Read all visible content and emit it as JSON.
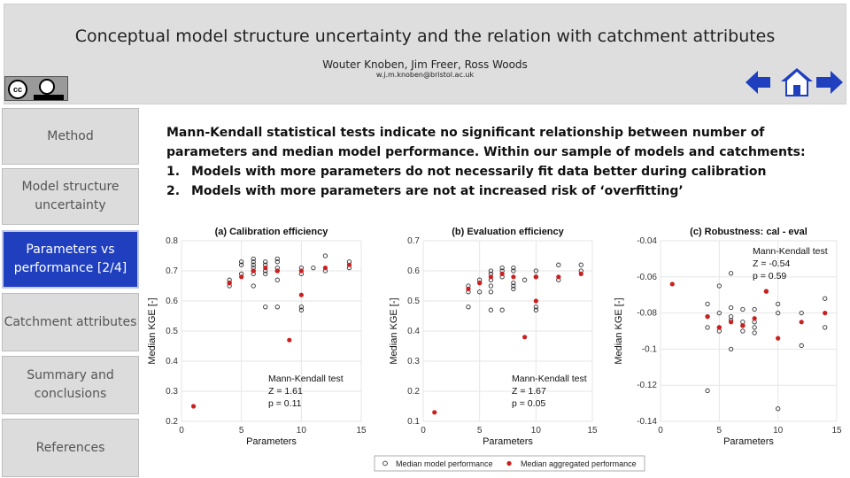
{
  "header": {
    "title": "Conceptual model structure uncertainty and the relation with catchment attributes",
    "authors": "Wouter Knoben, Jim Freer, Ross Woods",
    "email": "w.j.m.knoben@bristol.ac.uk"
  },
  "license": {
    "cc_label": "cc",
    "icon": "creative-commons-by-icon"
  },
  "nav": {
    "back_icon": "arrow-left-icon",
    "home_icon": "home-icon",
    "next_icon": "arrow-right-icon",
    "color": "#1f3fbf"
  },
  "sidebar": {
    "items": [
      {
        "label": "Method",
        "active": false
      },
      {
        "label": "Model structure uncertainty",
        "active": false
      },
      {
        "label": "Parameters vs performance [2/4]",
        "active": true
      },
      {
        "label": "Catchment attributes",
        "active": false
      },
      {
        "label": "Summary and conclusions",
        "active": false
      },
      {
        "label": "References",
        "active": false
      }
    ]
  },
  "body": {
    "intro": "Mann-Kendall statistical tests indicate no significant relationship between number of parameters and median model performance. Within our sample of models and catchments:",
    "points": [
      {
        "num": "1.",
        "before": "Models with more parameters do ",
        "emph": "not",
        "after": " necessarily fit data better during calibration"
      },
      {
        "num": "2.",
        "before": "Models with more parameters are ",
        "emph": "not",
        "after": " at increased risk of ‘overfitting’"
      }
    ]
  },
  "legend": {
    "series_a": "Median model performance",
    "series_b": "Median aggregated performance"
  },
  "colors": {
    "open_marker": "#333333",
    "red_marker": "#cc1f1f",
    "grid": "#e6e6e6"
  },
  "chart_data": [
    {
      "type": "scatter",
      "title": "(a) Calibration efficiency",
      "xlabel": "Parameters",
      "ylabel": "Median KGE [-]",
      "xlim": [
        0,
        15
      ],
      "ylim": [
        0.2,
        0.8
      ],
      "xticks": [
        "0",
        "5",
        "10",
        "15"
      ],
      "yticks": [
        "0.2",
        "0.3",
        "0.4",
        "0.5",
        "0.6",
        "0.7",
        "0.8"
      ],
      "grid": true,
      "stats": {
        "title": "Mann-Kendall test",
        "z": "Z = 1.61",
        "p": "p = 0.11",
        "placement": "bottom-right"
      },
      "series": [
        {
          "name": "Median model performance",
          "marker": "open-circle",
          "points": [
            [
              4,
              0.65
            ],
            [
              4,
              0.66
            ],
            [
              4,
              0.67
            ],
            [
              5,
              0.69
            ],
            [
              5,
              0.72
            ],
            [
              5,
              0.73
            ],
            [
              6,
              0.65
            ],
            [
              6,
              0.69
            ],
            [
              6,
              0.7
            ],
            [
              6,
              0.71
            ],
            [
              6,
              0.72
            ],
            [
              6,
              0.73
            ],
            [
              6,
              0.74
            ],
            [
              7,
              0.58
            ],
            [
              7,
              0.69
            ],
            [
              7,
              0.7
            ],
            [
              7,
              0.72
            ],
            [
              7,
              0.73
            ],
            [
              8,
              0.58
            ],
            [
              8,
              0.67
            ],
            [
              8,
              0.7
            ],
            [
              8,
              0.71
            ],
            [
              8,
              0.73
            ],
            [
              8,
              0.74
            ],
            [
              10,
              0.57
            ],
            [
              10,
              0.58
            ],
            [
              10,
              0.69
            ],
            [
              10,
              0.71
            ],
            [
              11,
              0.71
            ],
            [
              12,
              0.7
            ],
            [
              12,
              0.75
            ],
            [
              14,
              0.71
            ],
            [
              14,
              0.73
            ]
          ]
        },
        {
          "name": "Median aggregated performance",
          "marker": "filled-circle",
          "points": [
            [
              1,
              0.25
            ],
            [
              4,
              0.66
            ],
            [
              5,
              0.68
            ],
            [
              6,
              0.7
            ],
            [
              7,
              0.71
            ],
            [
              8,
              0.7
            ],
            [
              9,
              0.47
            ],
            [
              10,
              0.62
            ],
            [
              10,
              0.7
            ],
            [
              12,
              0.71
            ],
            [
              14,
              0.72
            ]
          ]
        }
      ]
    },
    {
      "type": "scatter",
      "title": "(b) Evaluation efficiency",
      "xlabel": "Parameters",
      "ylabel": "Median KGE [-]",
      "xlim": [
        0,
        15
      ],
      "ylim": [
        0.1,
        0.7
      ],
      "xticks": [
        "0",
        "5",
        "10",
        "15"
      ],
      "yticks": [
        "0.1",
        "0.2",
        "0.3",
        "0.4",
        "0.5",
        "0.6",
        "0.7"
      ],
      "grid": true,
      "stats": {
        "title": "Mann-Kendall test",
        "z": "Z = 1.67",
        "p": "p = 0.05",
        "placement": "bottom-right"
      },
      "series": [
        {
          "name": "Median model performance",
          "marker": "open-circle",
          "points": [
            [
              4,
              0.48
            ],
            [
              4,
              0.53
            ],
            [
              4,
              0.55
            ],
            [
              5,
              0.53
            ],
            [
              5,
              0.56
            ],
            [
              5,
              0.57
            ],
            [
              6,
              0.47
            ],
            [
              6,
              0.53
            ],
            [
              6,
              0.55
            ],
            [
              6,
              0.57
            ],
            [
              6,
              0.59
            ],
            [
              6,
              0.6
            ],
            [
              7,
              0.47
            ],
            [
              7,
              0.58
            ],
            [
              7,
              0.6
            ],
            [
              7,
              0.61
            ],
            [
              8,
              0.54
            ],
            [
              8,
              0.55
            ],
            [
              8,
              0.56
            ],
            [
              8,
              0.6
            ],
            [
              8,
              0.61
            ],
            [
              9,
              0.57
            ],
            [
              10,
              0.47
            ],
            [
              10,
              0.48
            ],
            [
              10,
              0.58
            ],
            [
              10,
              0.6
            ],
            [
              12,
              0.57
            ],
            [
              12,
              0.62
            ],
            [
              14,
              0.6
            ],
            [
              14,
              0.62
            ]
          ]
        },
        {
          "name": "Median aggregated performance",
          "marker": "filled-circle",
          "points": [
            [
              1,
              0.13
            ],
            [
              4,
              0.54
            ],
            [
              5,
              0.56
            ],
            [
              6,
              0.58
            ],
            [
              7,
              0.59
            ],
            [
              8,
              0.58
            ],
            [
              9,
              0.38
            ],
            [
              10,
              0.5
            ],
            [
              10,
              0.58
            ],
            [
              12,
              0.58
            ],
            [
              14,
              0.59
            ]
          ]
        }
      ]
    },
    {
      "type": "scatter",
      "title": "(c) Robustness: cal - eval",
      "xlabel": "Parameters",
      "ylabel": "Median KGE [-]",
      "xlim": [
        0,
        15
      ],
      "ylim": [
        -0.14,
        -0.04
      ],
      "xticks": [
        "0",
        "5",
        "10",
        "15"
      ],
      "yticks": [
        "-0.14",
        "-0.12",
        "-0.1",
        "-0.08",
        "-0.06",
        "-0.04"
      ],
      "grid": true,
      "stats": {
        "title": "Mann-Kendall test",
        "z": "Z = -0.54",
        "p": "p = 0.59",
        "placement": "top-right"
      },
      "series": [
        {
          "name": "Median model performance",
          "marker": "open-circle",
          "points": [
            [
              4,
              -0.075
            ],
            [
              4,
              -0.082
            ],
            [
              4,
              -0.088
            ],
            [
              4,
              -0.123
            ],
            [
              5,
              -0.065
            ],
            [
              5,
              -0.08
            ],
            [
              5,
              -0.088
            ],
            [
              5,
              -0.09
            ],
            [
              6,
              -0.058
            ],
            [
              6,
              -0.077
            ],
            [
              6,
              -0.082
            ],
            [
              6,
              -0.084
            ],
            [
              6,
              -0.1
            ],
            [
              7,
              -0.078
            ],
            [
              7,
              -0.085
            ],
            [
              7,
              -0.087
            ],
            [
              7,
              -0.09
            ],
            [
              8,
              -0.078
            ],
            [
              8,
              -0.085
            ],
            [
              8,
              -0.088
            ],
            [
              8,
              -0.091
            ],
            [
              9,
              -0.068
            ],
            [
              10,
              -0.075
            ],
            [
              10,
              -0.08
            ],
            [
              10,
              -0.133
            ],
            [
              12,
              -0.08
            ],
            [
              12,
              -0.098
            ],
            [
              14,
              -0.072
            ],
            [
              14,
              -0.088
            ]
          ]
        },
        {
          "name": "Median aggregated performance",
          "marker": "filled-circle",
          "points": [
            [
              1,
              -0.064
            ],
            [
              4,
              -0.082
            ],
            [
              5,
              -0.088
            ],
            [
              6,
              -0.085
            ],
            [
              7,
              -0.087
            ],
            [
              8,
              -0.083
            ],
            [
              9,
              -0.068
            ],
            [
              10,
              -0.094
            ],
            [
              12,
              -0.085
            ],
            [
              14,
              -0.08
            ]
          ]
        }
      ]
    }
  ]
}
